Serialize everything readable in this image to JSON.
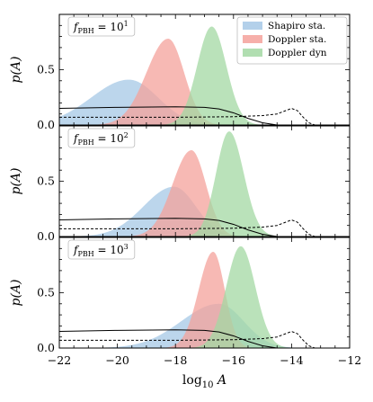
{
  "chart_data": {
    "type": "area",
    "xlabel": "log10 A",
    "xlabel_parts": {
      "base": "log",
      "sub": "10",
      "var": "A"
    },
    "ylabel": "p(A)",
    "xlim": [
      -22,
      -12
    ],
    "ylim": [
      0,
      1.0
    ],
    "xticks": [
      -22,
      -20,
      -18,
      -16,
      -14,
      -12
    ],
    "xtick_labels": [
      "−22",
      "−20",
      "−18",
      "−16",
      "−14",
      "−12"
    ],
    "yticks": [
      0.0,
      0.5
    ],
    "ytick_labels": [
      "0.0",
      "0.5"
    ],
    "legend": {
      "placement": "top-right",
      "entries": [
        {
          "name": "Shapiro sta.",
          "color": "#a6c8e6"
        },
        {
          "name": "Doppler sta.",
          "color": "#f4a19b"
        },
        {
          "name": "Doppler dyn",
          "color": "#a3d8a3"
        }
      ]
    },
    "panels": [
      {
        "annotation": {
          "prefix": "f",
          "sub": "PBH",
          "eq": " = 10",
          "sup": "1"
        },
        "series": [
          {
            "name": "Shapiro sta.",
            "shape": "gaussian",
            "center": -19.6,
            "sigma_left": 1.3,
            "sigma_right": 1.0,
            "peak": 0.41,
            "color": "#a6c8e6"
          },
          {
            "name": "Doppler sta.",
            "shape": "gaussian",
            "center": -18.25,
            "sigma_left": 0.75,
            "sigma_right": 0.55,
            "peak": 0.78,
            "color": "#f4a19b"
          },
          {
            "name": "Doppler dyn",
            "shape": "gaussian",
            "center": -16.75,
            "sigma_left": 0.5,
            "sigma_right": 0.5,
            "peak": 0.89,
            "color": "#a3d8a3"
          }
        ]
      },
      {
        "annotation": {
          "prefix": "f",
          "sub": "PBH",
          "eq": " = 10",
          "sup": "2"
        },
        "series": [
          {
            "name": "Shapiro sta.",
            "shape": "gaussian",
            "center": -18.05,
            "sigma_left": 1.05,
            "sigma_right": 0.75,
            "peak": 0.45,
            "color": "#a6c8e6"
          },
          {
            "name": "Doppler sta.",
            "shape": "gaussian",
            "center": -17.45,
            "sigma_left": 0.65,
            "sigma_right": 0.5,
            "peak": 0.78,
            "color": "#f4a19b"
          },
          {
            "name": "Doppler dyn",
            "shape": "gaussian",
            "center": -16.15,
            "sigma_left": 0.45,
            "sigma_right": 0.5,
            "peak": 0.95,
            "color": "#a3d8a3"
          }
        ]
      },
      {
        "annotation": {
          "prefix": "f",
          "sub": "PBH",
          "eq": " = 10",
          "sup": "3"
        },
        "series": [
          {
            "name": "Shapiro sta.",
            "shape": "gaussian",
            "center": -16.5,
            "sigma_left": 1.3,
            "sigma_right": 0.85,
            "peak": 0.4,
            "color": "#a6c8e6"
          },
          {
            "name": "Doppler sta.",
            "shape": "gaussian",
            "center": -16.7,
            "sigma_left": 0.5,
            "sigma_right": 0.4,
            "peak": 0.87,
            "color": "#f4a19b"
          },
          {
            "name": "Doppler dyn",
            "shape": "gaussian",
            "center": -15.75,
            "sigma_left": 0.5,
            "sigma_right": 0.5,
            "peak": 0.92,
            "color": "#a3d8a3"
          }
        ]
      }
    ],
    "reference_lines": {
      "solid": {
        "description": "solid black",
        "points": [
          [
            -22,
            0.15
          ],
          [
            -20,
            0.16
          ],
          [
            -18,
            0.165
          ],
          [
            -17,
            0.16
          ],
          [
            -16.5,
            0.145
          ],
          [
            -16,
            0.11
          ],
          [
            -15.5,
            0.06
          ],
          [
            -15,
            0.02
          ],
          [
            -14.5,
            0.0
          ],
          [
            -12,
            0.0
          ]
        ]
      },
      "dashed": {
        "description": "dashed black",
        "points": [
          [
            -22,
            0.07
          ],
          [
            -20,
            0.07
          ],
          [
            -18,
            0.07
          ],
          [
            -16,
            0.075
          ],
          [
            -15,
            0.085
          ],
          [
            -14.5,
            0.1
          ],
          [
            -14.2,
            0.13
          ],
          [
            -14.0,
            0.15
          ],
          [
            -13.8,
            0.13
          ],
          [
            -13.6,
            0.07
          ],
          [
            -13.4,
            0.02
          ],
          [
            -13.2,
            0.0
          ],
          [
            -12,
            0.0
          ]
        ]
      }
    }
  }
}
